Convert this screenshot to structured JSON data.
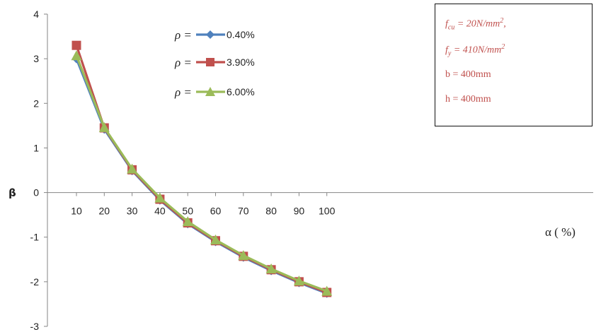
{
  "chart_data": {
    "type": "line",
    "title": "",
    "xlabel": "α ( %)",
    "ylabel": "β",
    "x": [
      10,
      20,
      30,
      40,
      50,
      60,
      70,
      80,
      90,
      100
    ],
    "ylim": [
      -3,
      4
    ],
    "yticks": [
      "4",
      "3",
      "2",
      "1",
      "0",
      "-1",
      "-2",
      "-3"
    ],
    "grid": false,
    "legend_position": "top-left",
    "series": [
      {
        "name": "0.40%",
        "label_prefix": "ρ =",
        "color": "#4f81bd",
        "marker": "diamond",
        "values": [
          3.0,
          1.42,
          0.49,
          -0.17,
          -0.7,
          -1.1,
          -1.45,
          -1.75,
          -2.02,
          -2.26
        ]
      },
      {
        "name": "3.90%",
        "label_prefix": "ρ =",
        "color": "#c0504d",
        "marker": "square",
        "values": [
          3.3,
          1.45,
          0.51,
          -0.15,
          -0.68,
          -1.08,
          -1.43,
          -1.73,
          -2.0,
          -2.24
        ]
      },
      {
        "name": "6.00%",
        "label_prefix": "ρ =",
        "color": "#9bbb59",
        "marker": "triangle",
        "values": [
          3.07,
          1.46,
          0.53,
          -0.12,
          -0.65,
          -1.06,
          -1.41,
          -1.71,
          -1.98,
          -2.21
        ]
      }
    ]
  },
  "annotation": {
    "fcu_symbol": "f",
    "fcu_sub": "cu",
    "fcu_text": " = 20N/mm",
    "fcu_sup": "2",
    "fcu_tail": ",",
    "fy_symbol": "f",
    "fy_sub": "y",
    "fy_text": " = 410N/mm",
    "fy_sup": "2",
    "b_text": "b = 400mm",
    "h_text": "h = 400mm"
  }
}
